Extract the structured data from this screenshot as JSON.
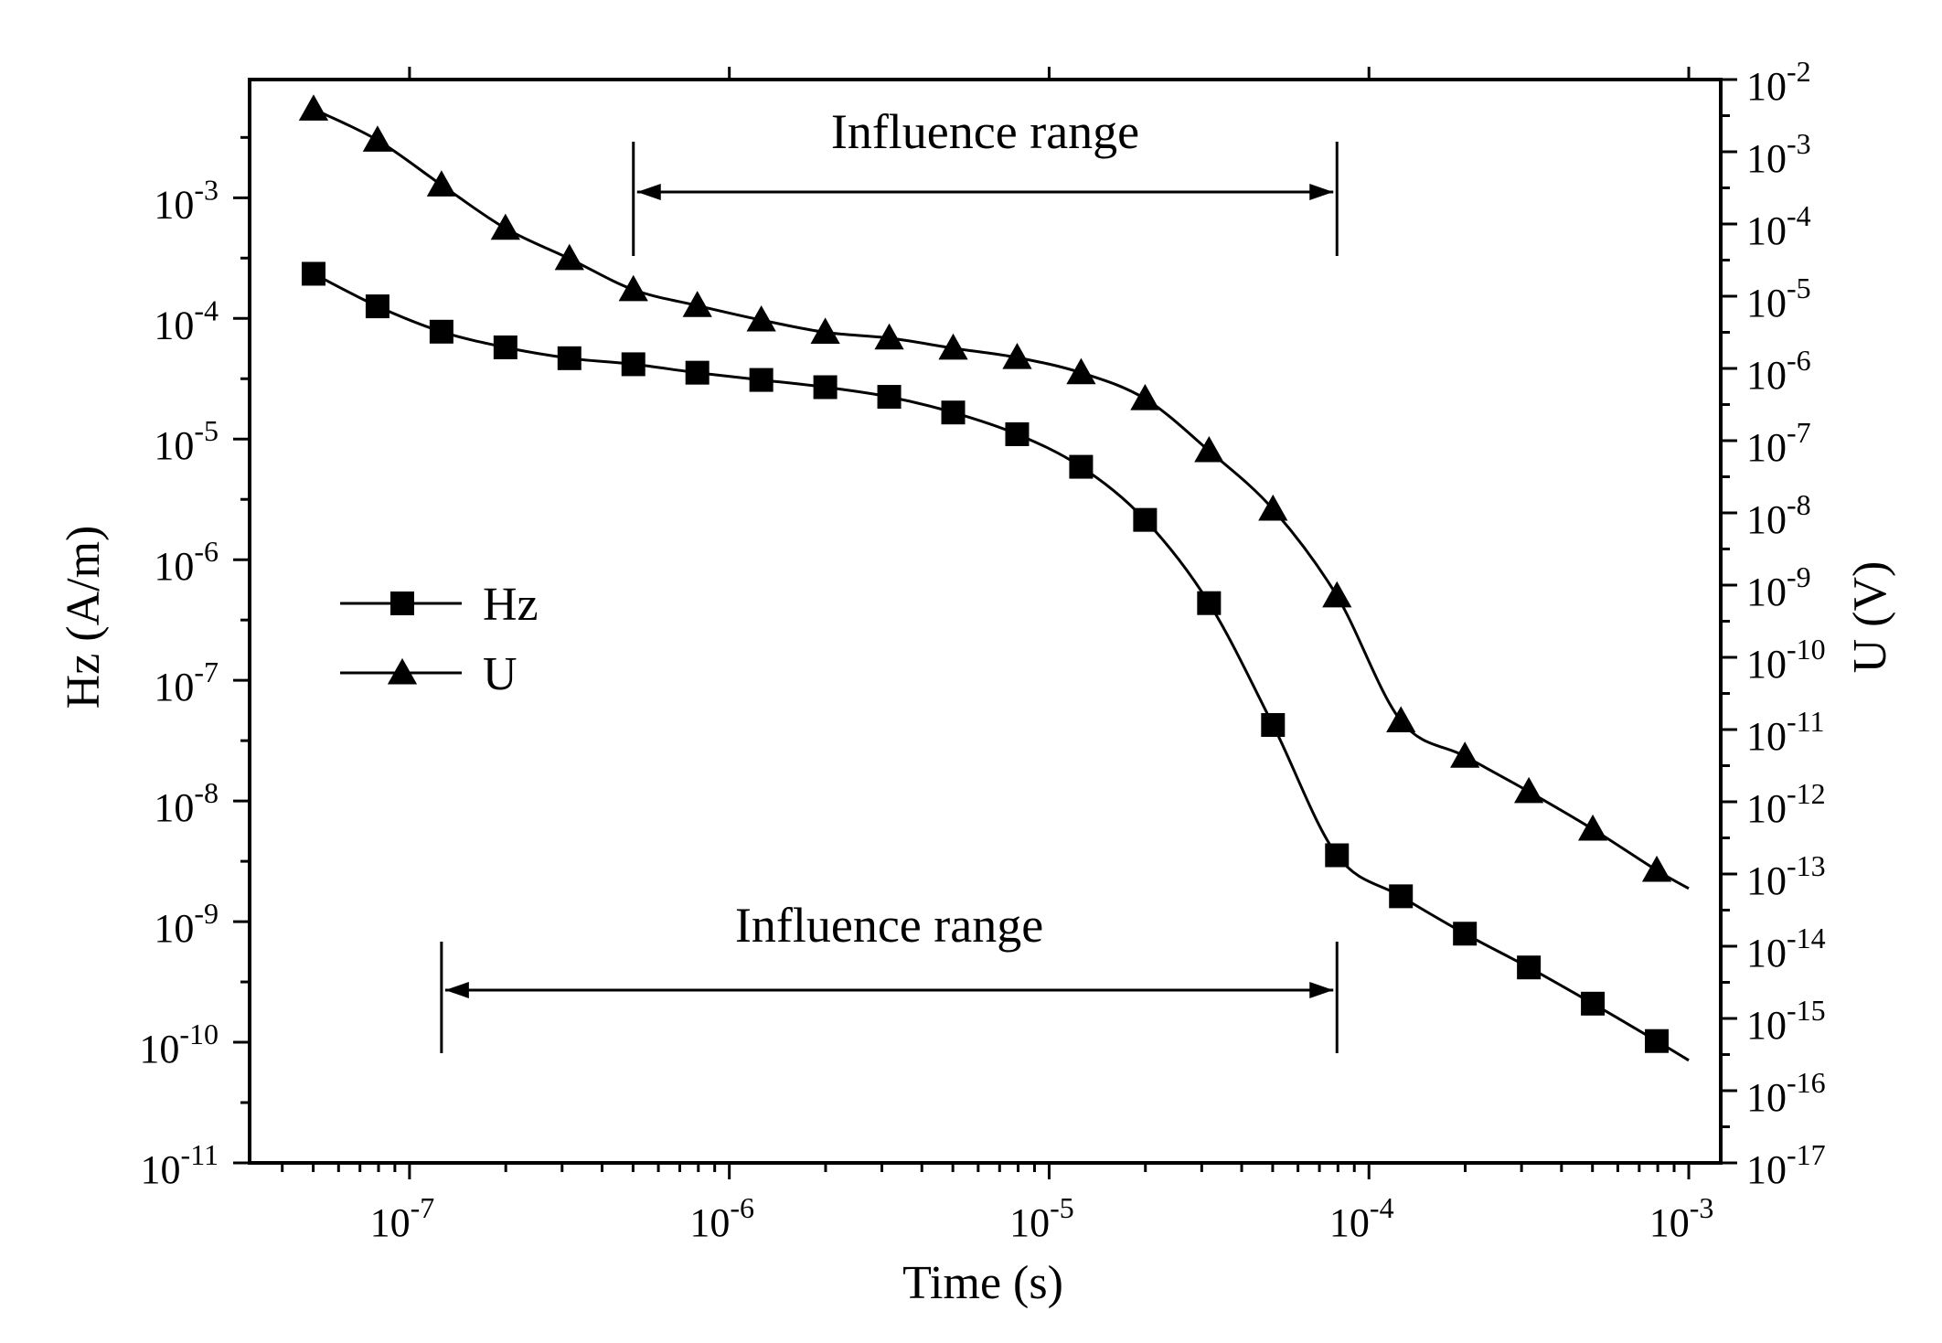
{
  "chart_data": {
    "type": "line",
    "title": "",
    "xlabel": "Time (s)",
    "ylabel": "Hz (A/m)",
    "y2label": "U (V)",
    "xscale": "log",
    "xlim_exp": [
      -7.5,
      -2.9
    ],
    "ylim_exp": [
      -11,
      -2.02
    ],
    "y2lim_exp": [
      -17,
      -2
    ],
    "x_ticks": [
      {
        "exp": -7,
        "base": "10",
        "sup": "-7"
      },
      {
        "exp": -6,
        "base": "10",
        "sup": "-6"
      },
      {
        "exp": -5,
        "base": "10",
        "sup": "-5"
      },
      {
        "exp": -4,
        "base": "10",
        "sup": "-4"
      },
      {
        "exp": -3,
        "base": "10",
        "sup": "-3"
      }
    ],
    "y_ticks": [
      {
        "exp": -11,
        "base": "10",
        "sup": "-11"
      },
      {
        "exp": -10,
        "base": "10",
        "sup": "-10"
      },
      {
        "exp": -9,
        "base": "10",
        "sup": "-9"
      },
      {
        "exp": -8,
        "base": "10",
        "sup": "-8"
      },
      {
        "exp": -7,
        "base": "10",
        "sup": "-7"
      },
      {
        "exp": -6,
        "base": "10",
        "sup": "-6"
      },
      {
        "exp": -5,
        "base": "10",
        "sup": "-5"
      },
      {
        "exp": -4,
        "base": "10",
        "sup": "-4"
      },
      {
        "exp": -3,
        "base": "10",
        "sup": "-3"
      }
    ],
    "y2_ticks": [
      {
        "exp": -17,
        "base": "10",
        "sup": "-17"
      },
      {
        "exp": -16,
        "base": "10",
        "sup": "-16"
      },
      {
        "exp": -15,
        "base": "10",
        "sup": "-15"
      },
      {
        "exp": -14,
        "base": "10",
        "sup": "-14"
      },
      {
        "exp": -13,
        "base": "10",
        "sup": "-13"
      },
      {
        "exp": -12,
        "base": "10",
        "sup": "-12"
      },
      {
        "exp": -11,
        "base": "10",
        "sup": "-11"
      },
      {
        "exp": -10,
        "base": "10",
        "sup": "-10"
      },
      {
        "exp": -9,
        "base": "10",
        "sup": "-9"
      },
      {
        "exp": -8,
        "base": "10",
        "sup": "-8"
      },
      {
        "exp": -7,
        "base": "10",
        "sup": "-7"
      },
      {
        "exp": -6,
        "base": "10",
        "sup": "-6"
      },
      {
        "exp": -5,
        "base": "10",
        "sup": "-5"
      },
      {
        "exp": -4,
        "base": "10",
        "sup": "-4"
      },
      {
        "exp": -3,
        "base": "10",
        "sup": "-3"
      },
      {
        "exp": -2,
        "base": "10",
        "sup": "-2"
      }
    ],
    "x_log": [
      -7.3,
      -7.1,
      -6.9,
      -6.7,
      -6.5,
      -6.3,
      -6.1,
      -5.9,
      -5.7,
      -5.5,
      -5.3,
      -5.1,
      -4.9,
      -4.7,
      -4.5,
      -4.3,
      -4.1,
      -3.9,
      -3.7,
      -3.5,
      -3.3,
      -3.1
    ],
    "series": [
      {
        "name": "Hz",
        "axis": "left",
        "marker": "square",
        "y_log": [
          -3.63,
          -3.9,
          -4.11,
          -4.24,
          -4.33,
          -4.38,
          -4.45,
          -4.51,
          -4.57,
          -4.65,
          -4.78,
          -4.96,
          -5.23,
          -5.67,
          -6.36,
          -7.37,
          -8.45,
          -8.79,
          -9.1,
          -9.38,
          -9.68,
          -9.99
        ],
        "tail_log": [
          -3.0,
          -10.15
        ]
      },
      {
        "name": "U",
        "axis": "right",
        "marker": "triangle",
        "y_log": [
          -2.41,
          -2.84,
          -3.46,
          -4.06,
          -4.48,
          -4.91,
          -5.13,
          -5.33,
          -5.5,
          -5.58,
          -5.72,
          -5.85,
          -6.06,
          -6.42,
          -7.14,
          -7.95,
          -9.15,
          -10.88,
          -11.37,
          -11.86,
          -12.38,
          -12.95
        ],
        "tail_log": [
          -3.0,
          -13.2
        ]
      }
    ],
    "legend": {
      "position": "left-middle",
      "entries": [
        "Hz",
        "U"
      ]
    },
    "annotations": [
      {
        "text": "Influence range",
        "series": "U",
        "from_log": -6.3,
        "to_log": -4.1
      },
      {
        "text": "Influence range",
        "series": "Hz",
        "from_log": -6.9,
        "to_log": -4.1
      }
    ]
  }
}
